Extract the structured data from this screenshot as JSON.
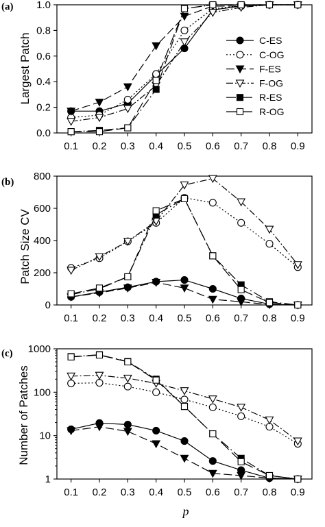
{
  "chart_data": [
    {
      "type": "line",
      "panel_tag": "(a)",
      "ylabel": "Largest Patch",
      "xlabel": "",
      "ylim": [
        0,
        1.0
      ],
      "yscale": "linear",
      "yticks": [
        "0.0",
        "0.2",
        "0.4",
        "0.6",
        "0.8",
        "1.0"
      ],
      "x": [
        0.1,
        0.2,
        0.3,
        0.4,
        0.5,
        0.6,
        0.7,
        0.8,
        0.9
      ],
      "xticks": [
        "0.1",
        "0.2",
        "0.3",
        "0.4",
        "0.5",
        "0.6",
        "0.7",
        "0.8",
        "0.9"
      ],
      "legend": "right",
      "series": [
        {
          "name": "C-ES",
          "values": [
            0.17,
            0.17,
            0.23,
            0.45,
            0.66,
            0.96,
            0.99,
            1.0,
            1.0
          ]
        },
        {
          "name": "C-OG",
          "values": [
            0.12,
            0.14,
            0.26,
            0.46,
            0.8,
            0.97,
            0.99,
            1.0,
            1.0
          ]
        },
        {
          "name": "F-ES",
          "values": [
            0.17,
            0.24,
            0.36,
            0.68,
            0.91,
            0.99,
            0.99,
            1.0,
            1.0
          ]
        },
        {
          "name": "F-OG",
          "values": [
            0.09,
            0.12,
            0.19,
            0.37,
            0.71,
            0.94,
            0.98,
            1.0,
            1.0
          ]
        },
        {
          "name": "R-ES",
          "values": [
            0.01,
            0.02,
            0.04,
            0.34,
            0.97,
            1.0,
            1.0,
            1.0,
            1.0
          ]
        },
        {
          "name": "R-OG",
          "values": [
            0.01,
            0.01,
            0.04,
            0.41,
            0.97,
            1.0,
            1.0,
            1.0,
            1.0
          ]
        }
      ]
    },
    {
      "type": "line",
      "panel_tag": "(b)",
      "ylabel": "Patch Size CV",
      "xlabel": "",
      "ylim": [
        0,
        800
      ],
      "yscale": "linear",
      "yticks": [
        "0",
        "200",
        "400",
        "600",
        "800"
      ],
      "x": [
        0.1,
        0.2,
        0.3,
        0.4,
        0.5,
        0.6,
        0.7,
        0.8,
        0.9
      ],
      "xticks": [
        "0.1",
        "0.2",
        "0.3",
        "0.4",
        "0.5",
        "0.6",
        "0.7",
        "0.8",
        "0.9"
      ],
      "series": [
        {
          "name": "C-ES",
          "values": [
            50,
            80,
            110,
            145,
            155,
            100,
            40,
            5,
            0
          ]
        },
        {
          "name": "C-OG",
          "values": [
            230,
            290,
            395,
            510,
            665,
            635,
            510,
            380,
            235
          ]
        },
        {
          "name": "F-ES",
          "values": [
            50,
            75,
            105,
            140,
            105,
            35,
            20,
            2,
            0
          ]
        },
        {
          "name": "F-OG",
          "values": [
            215,
            300,
            395,
            520,
            745,
            785,
            640,
            470,
            250
          ]
        },
        {
          "name": "R-ES",
          "values": [
            65,
            100,
            175,
            560,
            660,
            305,
            125,
            20,
            0
          ]
        },
        {
          "name": "R-OG",
          "values": [
            70,
            105,
            175,
            585,
            660,
            305,
            95,
            15,
            0
          ]
        }
      ]
    },
    {
      "type": "line",
      "panel_tag": "(c)",
      "ylabel": "Number of Patches",
      "xlabel": "p",
      "ylim": [
        1,
        1000
      ],
      "yscale": "log",
      "yticks": [
        "1",
        "10",
        "100",
        "1000"
      ],
      "ytick_values": [
        1,
        10,
        100,
        1000
      ],
      "x": [
        0.1,
        0.2,
        0.3,
        0.4,
        0.5,
        0.6,
        0.7,
        0.8,
        0.9
      ],
      "xticks": [
        "0.1",
        "0.2",
        "0.3",
        "0.4",
        "0.5",
        "0.6",
        "0.7",
        "0.8",
        "0.9"
      ],
      "series": [
        {
          "name": "C-ES",
          "values": [
            14,
            19.5,
            18,
            13,
            7.5,
            2.6,
            1.6,
            1.05,
            1.0
          ]
        },
        {
          "name": "C-OG",
          "values": [
            160,
            165,
            135,
            100,
            68,
            45,
            28,
            16,
            6.5
          ]
        },
        {
          "name": "F-ES",
          "values": [
            13,
            16,
            12.5,
            6.5,
            3,
            1.35,
            1.2,
            1.05,
            1.0
          ]
        },
        {
          "name": "F-OG",
          "values": [
            235,
            245,
            210,
            160,
            108,
            70,
            45,
            23,
            7.5
          ]
        },
        {
          "name": "R-ES",
          "values": [
            660,
            730,
            510,
            200,
            47,
            11,
            3,
            1.2,
            1.0
          ]
        },
        {
          "name": "R-OG",
          "values": [
            650,
            720,
            500,
            190,
            47,
            11,
            2.5,
            1.2,
            1.0
          ]
        }
      ]
    }
  ],
  "series_styles": {
    "C-ES": {
      "marker": "circle",
      "fill": "#000000",
      "dash": "none",
      "color": "#000000"
    },
    "C-OG": {
      "marker": "circle",
      "fill": "#ffffff",
      "dash": "2,3",
      "color": "#000000"
    },
    "F-ES": {
      "marker": "triangle-down",
      "fill": "#000000",
      "dash": "12,5",
      "color": "#000000"
    },
    "F-OG": {
      "marker": "triangle-down",
      "fill": "#ffffff",
      "dash": "10,3,2,3",
      "color": "#000000"
    },
    "R-ES": {
      "marker": "square",
      "fill": "#000000",
      "dash": "14,4,2,4",
      "color": "#000000"
    },
    "R-OG": {
      "marker": "square",
      "fill": "#ffffff",
      "dash": "16,6",
      "color": "#000000"
    }
  }
}
